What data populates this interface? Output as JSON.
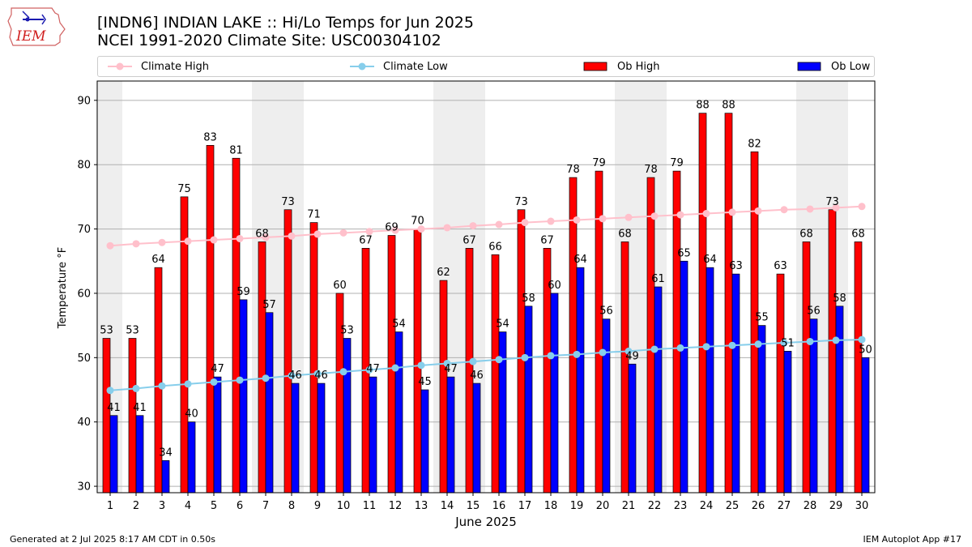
{
  "header": {
    "logo_text": "IEM",
    "title_line1": "[INDN6] INDIAN LAKE :: Hi/Lo Temps for Jun 2025",
    "title_line2": "NCEI 1991-2020 Climate Site: USC00304102"
  },
  "footer": {
    "generated": "Generated at 2 Jul 2025 8:17 AM CDT in 0.50s",
    "app": "IEM Autoplot App #17"
  },
  "colors": {
    "climate_high": "#ffc0cb",
    "climate_low": "#87ceeb",
    "ob_high": "#ff0000",
    "ob_low": "#0000ff",
    "weekend_band": "#eeeeee",
    "grid": "#b0b0b0"
  },
  "chart_data": {
    "type": "bar",
    "xlabel": "June 2025",
    "ylabel": "Temperature °F",
    "ylim": [
      29,
      93
    ],
    "yticks": [
      30,
      40,
      50,
      60,
      70,
      80,
      90
    ],
    "grid": "horizontal",
    "legend_position": "top",
    "categories": [
      "1",
      "2",
      "3",
      "4",
      "5",
      "6",
      "7",
      "8",
      "9",
      "10",
      "11",
      "12",
      "13",
      "14",
      "15",
      "16",
      "17",
      "18",
      "19",
      "20",
      "21",
      "22",
      "23",
      "24",
      "25",
      "26",
      "27",
      "28",
      "29",
      "30"
    ],
    "shaded_days": [
      1,
      7,
      8,
      14,
      15,
      21,
      22,
      28,
      29
    ],
    "series": [
      {
        "name": "Ob High",
        "kind": "bar",
        "color": "#ff0000",
        "values": [
          53,
          53,
          64,
          75,
          83,
          81,
          68,
          73,
          71,
          60,
          67,
          69,
          70,
          62,
          67,
          66,
          73,
          67,
          78,
          79,
          68,
          78,
          79,
          88,
          88,
          82,
          63,
          68,
          73,
          68
        ]
      },
      {
        "name": "Ob Low",
        "kind": "bar",
        "color": "#0000ff",
        "values": [
          41,
          41,
          34,
          40,
          47,
          59,
          57,
          46,
          46,
          53,
          47,
          54,
          45,
          47,
          46,
          54,
          58,
          60,
          64,
          56,
          49,
          61,
          65,
          64,
          63,
          55,
          51,
          56,
          58,
          50
        ]
      },
      {
        "name": "Climate High",
        "kind": "line",
        "color": "#ffc0cb",
        "values": [
          67.4,
          67.7,
          67.9,
          68.1,
          68.3,
          68.5,
          68.7,
          68.9,
          69.2,
          69.4,
          69.6,
          69.8,
          70.0,
          70.2,
          70.5,
          70.7,
          71.0,
          71.2,
          71.4,
          71.6,
          71.8,
          72.0,
          72.2,
          72.4,
          72.6,
          72.8,
          73.0,
          73.1,
          73.3,
          73.5
        ]
      },
      {
        "name": "Climate Low",
        "kind": "line",
        "color": "#87ceeb",
        "values": [
          44.9,
          45.2,
          45.6,
          45.9,
          46.2,
          46.5,
          46.8,
          47.2,
          47.5,
          47.8,
          48.1,
          48.4,
          48.8,
          49.1,
          49.4,
          49.7,
          50.0,
          50.3,
          50.5,
          50.8,
          51.0,
          51.3,
          51.5,
          51.7,
          51.9,
          52.1,
          52.3,
          52.5,
          52.7,
          52.8
        ]
      }
    ]
  }
}
